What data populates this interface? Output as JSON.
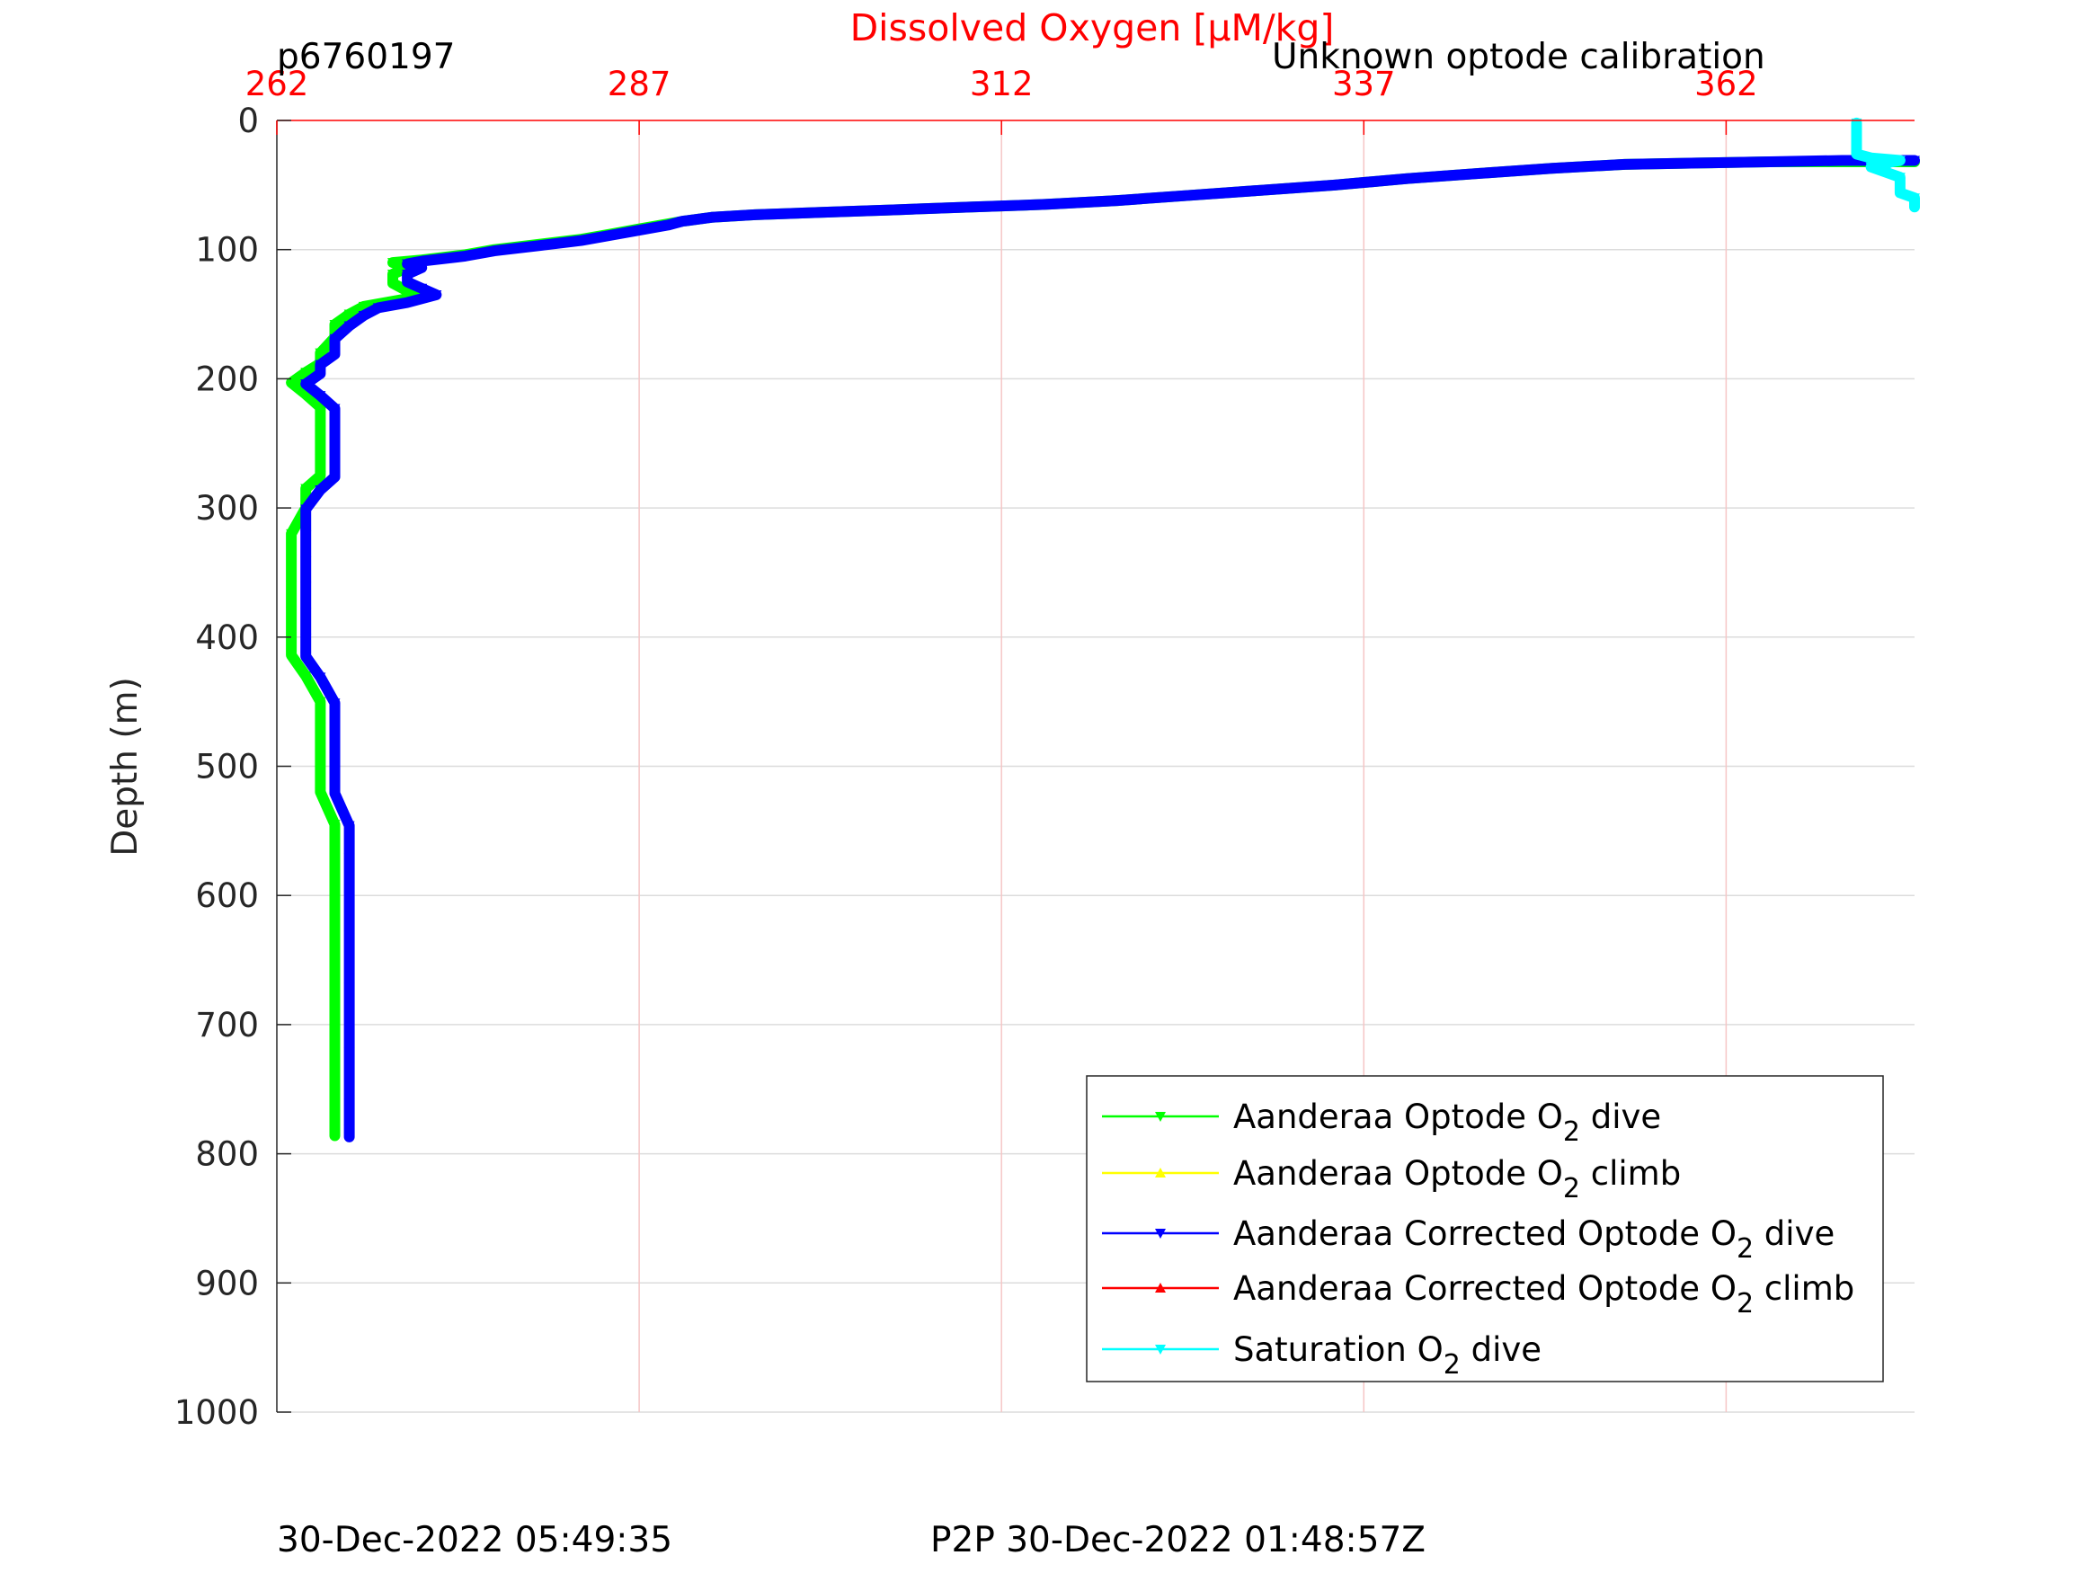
{
  "chart_data": {
    "type": "line",
    "title": "Dissolved Oxygen [µM/kg]",
    "title_color": "#ff0000",
    "top_left_label": "p6760197",
    "top_right_label": "Unknown optode calibration",
    "ylabel": "Depth (m)",
    "xlim": [
      262,
      375
    ],
    "ylim": [
      0,
      1000
    ],
    "y_reversed": true,
    "x_axis_position": "top",
    "x_ticks": [
      "262",
      "287",
      "312",
      "337",
      "362"
    ],
    "y_ticks": [
      "0",
      "100",
      "200",
      "300",
      "400",
      "500",
      "600",
      "700",
      "800",
      "900",
      "1000"
    ],
    "grid": true,
    "legend_position": "lower-right",
    "footer_left": "30-Dec-2022 05:49:35",
    "footer_center": "P2P 30-Dec-2022 01:48:57Z",
    "series": [
      {
        "name": "Aanderaa Optode O2 dive",
        "label_main": "Aanderaa Optode O",
        "label_sub": "2",
        "label_tail": " dive",
        "color": "#00ff00",
        "marker": "triangle-down",
        "points": [
          [
            375,
            32
          ],
          [
            370,
            32
          ],
          [
            365,
            32
          ],
          [
            360,
            33
          ],
          [
            355,
            34
          ],
          [
            350,
            37
          ],
          [
            345,
            41
          ],
          [
            340,
            45
          ],
          [
            335,
            50
          ],
          [
            330,
            54
          ],
          [
            325,
            58
          ],
          [
            320,
            62
          ],
          [
            315,
            65
          ],
          [
            310,
            67
          ],
          [
            305,
            69
          ],
          [
            300,
            71
          ],
          [
            295,
            73
          ],
          [
            292,
            75
          ],
          [
            290,
            78
          ],
          [
            289,
            80
          ],
          [
            287,
            84
          ],
          [
            285,
            88
          ],
          [
            283,
            92
          ],
          [
            280,
            96
          ],
          [
            277,
            100
          ],
          [
            275,
            104
          ],
          [
            272,
            108
          ],
          [
            270,
            110
          ],
          [
            271,
            114
          ],
          [
            270,
            119
          ],
          [
            270,
            126
          ],
          [
            271,
            132
          ],
          [
            272,
            136
          ],
          [
            270,
            140
          ],
          [
            268,
            144
          ],
          [
            267,
            150
          ],
          [
            266,
            158
          ],
          [
            266,
            168
          ],
          [
            265,
            180
          ],
          [
            265,
            188
          ],
          [
            264,
            195
          ],
          [
            263,
            203
          ],
          [
            264,
            212
          ],
          [
            265,
            222
          ],
          [
            265,
            240
          ],
          [
            265,
            262
          ],
          [
            265,
            275
          ],
          [
            264,
            285
          ],
          [
            264,
            300
          ],
          [
            263,
            320
          ],
          [
            263,
            340
          ],
          [
            263,
            360
          ],
          [
            263,
            380
          ],
          [
            263,
            400
          ],
          [
            263,
            414
          ],
          [
            264,
            430
          ],
          [
            265,
            450
          ],
          [
            265,
            470
          ],
          [
            265,
            490
          ],
          [
            265,
            520
          ],
          [
            266,
            545
          ],
          [
            266,
            570
          ],
          [
            266,
            600
          ],
          [
            266,
            630
          ],
          [
            266,
            670
          ],
          [
            266,
            720
          ],
          [
            266,
            760
          ],
          [
            266,
            780
          ],
          [
            266,
            786
          ]
        ]
      },
      {
        "name": "Aanderaa Optode O2 climb",
        "label_main": "Aanderaa Optode O",
        "label_sub": "2",
        "label_tail": " climb",
        "color": "#ffff00",
        "marker": "triangle-up",
        "points": []
      },
      {
        "name": "Aanderaa Corrected Optode O2 dive",
        "label_main": "Aanderaa Corrected Optode O",
        "label_sub": "2",
        "label_tail": " dive",
        "color": "#0000ff",
        "marker": "triangle-down",
        "points": [
          [
            375,
            31
          ],
          [
            370,
            31
          ],
          [
            365,
            32
          ],
          [
            360,
            33
          ],
          [
            355,
            34
          ],
          [
            350,
            37
          ],
          [
            345,
            41
          ],
          [
            340,
            45
          ],
          [
            335,
            50
          ],
          [
            330,
            54
          ],
          [
            325,
            58
          ],
          [
            320,
            62
          ],
          [
            315,
            65
          ],
          [
            310,
            67
          ],
          [
            305,
            69
          ],
          [
            300,
            71
          ],
          [
            295,
            73
          ],
          [
            292,
            75
          ],
          [
            290,
            78
          ],
          [
            289,
            81
          ],
          [
            287,
            85
          ],
          [
            285,
            89
          ],
          [
            283,
            93
          ],
          [
            280,
            97
          ],
          [
            277,
            101
          ],
          [
            275,
            105
          ],
          [
            272,
            109
          ],
          [
            271,
            111
          ],
          [
            272,
            114
          ],
          [
            271,
            119
          ],
          [
            271,
            125
          ],
          [
            272,
            130
          ],
          [
            273,
            135
          ],
          [
            271,
            141
          ],
          [
            269,
            145
          ],
          [
            268,
            151
          ],
          [
            267,
            159
          ],
          [
            266,
            169
          ],
          [
            266,
            181
          ],
          [
            265,
            189
          ],
          [
            265,
            196
          ],
          [
            264,
            204
          ],
          [
            265,
            213
          ],
          [
            266,
            223
          ],
          [
            266,
            241
          ],
          [
            266,
            263
          ],
          [
            266,
            276
          ],
          [
            265,
            286
          ],
          [
            264,
            301
          ],
          [
            264,
            321
          ],
          [
            264,
            341
          ],
          [
            264,
            361
          ],
          [
            264,
            381
          ],
          [
            264,
            401
          ],
          [
            264,
            415
          ],
          [
            265,
            431
          ],
          [
            266,
            451
          ],
          [
            266,
            471
          ],
          [
            266,
            491
          ],
          [
            266,
            521
          ],
          [
            267,
            546
          ],
          [
            267,
            571
          ],
          [
            267,
            601
          ],
          [
            267,
            631
          ],
          [
            267,
            671
          ],
          [
            267,
            721
          ],
          [
            267,
            761
          ],
          [
            267,
            781
          ],
          [
            267,
            787
          ]
        ]
      },
      {
        "name": "Aanderaa Corrected Optode O2 climb",
        "label_main": "Aanderaa Corrected Optode O",
        "label_sub": "2",
        "label_tail": " climb",
        "color": "#ff0000",
        "marker": "triangle-up",
        "points": []
      },
      {
        "name": "Saturation O2 dive",
        "label_main": "Saturation O",
        "label_sub": "2",
        "label_tail": " dive",
        "color": "#00ffff",
        "marker": "triangle-down",
        "points": [
          [
            371,
            2
          ],
          [
            371,
            8
          ],
          [
            371,
            14
          ],
          [
            371,
            20
          ],
          [
            371,
            26
          ],
          [
            372,
            29
          ],
          [
            373,
            30
          ],
          [
            374,
            31
          ],
          [
            373,
            33
          ],
          [
            372,
            36
          ],
          [
            373,
            40
          ],
          [
            374,
            44
          ],
          [
            374,
            48
          ],
          [
            374,
            52
          ],
          [
            374,
            56
          ],
          [
            375,
            60
          ],
          [
            375,
            64
          ],
          [
            375,
            67
          ]
        ]
      }
    ]
  }
}
